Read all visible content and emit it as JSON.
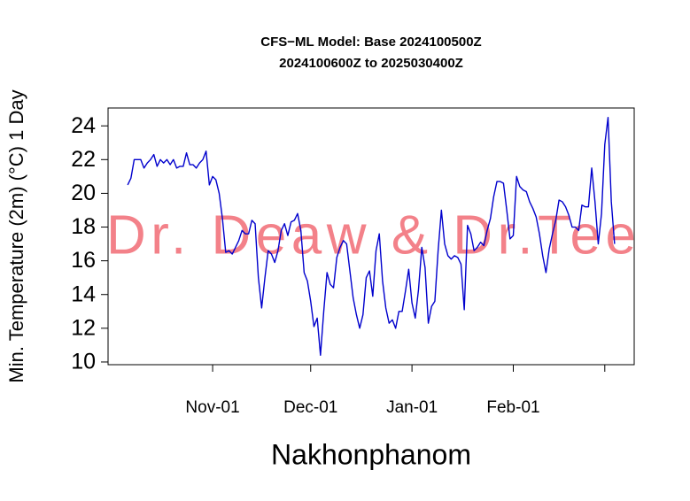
{
  "chart_data": {
    "type": "line",
    "title": [
      "CFS−ML Model: Base 2024100500Z",
      "2024100600Z to 2025030400Z"
    ],
    "xlabel": "Nakhonphanom",
    "ylabel": "Min. Temperature (2m) (°C) 1 Day",
    "watermark": "Dr. Deaw & Dr.Tee",
    "x": [
      "Oct-06",
      "Oct-07",
      "Oct-08",
      "Oct-09",
      "Oct-10",
      "Oct-11",
      "Oct-12",
      "Oct-13",
      "Oct-14",
      "Oct-15",
      "Oct-16",
      "Oct-17",
      "Oct-18",
      "Oct-19",
      "Oct-20",
      "Oct-21",
      "Oct-22",
      "Oct-23",
      "Oct-24",
      "Oct-25",
      "Oct-26",
      "Oct-27",
      "Oct-28",
      "Oct-29",
      "Oct-30",
      "Oct-31",
      "Nov-01",
      "Nov-02",
      "Nov-03",
      "Nov-04",
      "Nov-05",
      "Nov-06",
      "Nov-07",
      "Nov-08",
      "Nov-09",
      "Nov-10",
      "Nov-11",
      "Nov-12",
      "Nov-13",
      "Nov-14",
      "Nov-15",
      "Nov-16",
      "Nov-17",
      "Nov-18",
      "Nov-19",
      "Nov-20",
      "Nov-21",
      "Nov-22",
      "Nov-23",
      "Nov-24",
      "Nov-25",
      "Nov-26",
      "Nov-27",
      "Nov-28",
      "Nov-29",
      "Nov-30",
      "Dec-01",
      "Dec-02",
      "Dec-03",
      "Dec-04",
      "Dec-05",
      "Dec-06",
      "Dec-07",
      "Dec-08",
      "Dec-09",
      "Dec-10",
      "Dec-11",
      "Dec-12",
      "Dec-13",
      "Dec-14",
      "Dec-15",
      "Dec-16",
      "Dec-17",
      "Dec-18",
      "Dec-19",
      "Dec-20",
      "Dec-21",
      "Dec-22",
      "Dec-23",
      "Dec-24",
      "Dec-25",
      "Dec-26",
      "Dec-27",
      "Dec-28",
      "Dec-29",
      "Dec-30",
      "Dec-31",
      "Jan-01",
      "Jan-02",
      "Jan-03",
      "Jan-04",
      "Jan-05",
      "Jan-06",
      "Jan-07",
      "Jan-08",
      "Jan-09",
      "Jan-10",
      "Jan-11",
      "Jan-12",
      "Jan-13",
      "Jan-14",
      "Jan-15",
      "Jan-16",
      "Jan-17",
      "Jan-18",
      "Jan-19",
      "Jan-20",
      "Jan-21",
      "Jan-22",
      "Jan-23",
      "Jan-24",
      "Jan-25",
      "Jan-26",
      "Jan-27",
      "Jan-28",
      "Jan-29",
      "Jan-30",
      "Jan-31",
      "Feb-01",
      "Feb-02",
      "Feb-03",
      "Feb-04",
      "Feb-05",
      "Feb-06",
      "Feb-07",
      "Feb-08",
      "Feb-09",
      "Feb-10",
      "Feb-11",
      "Feb-12",
      "Feb-13",
      "Feb-14",
      "Feb-15",
      "Feb-16",
      "Feb-17",
      "Feb-18",
      "Feb-19",
      "Feb-20",
      "Feb-21",
      "Feb-22",
      "Feb-23",
      "Feb-24",
      "Feb-25",
      "Feb-26",
      "Feb-27",
      "Feb-28",
      "Mar-01",
      "Mar-02",
      "Mar-03",
      "Mar-04"
    ],
    "series": [
      {
        "color": "#0000cd",
        "values": [
          20.5,
          20.9,
          22.0,
          22.0,
          22.0,
          21.5,
          21.8,
          22.0,
          22.3,
          21.6,
          22.0,
          21.8,
          22.0,
          21.7,
          22.0,
          21.5,
          21.6,
          21.6,
          22.4,
          21.7,
          21.7,
          21.5,
          21.8,
          22.0,
          22.5,
          20.5,
          21.0,
          20.8,
          20.0,
          18.5,
          16.5,
          16.6,
          16.4,
          16.8,
          17.2,
          17.8,
          17.6,
          17.6,
          18.4,
          18.2,
          15.0,
          13.2,
          15.0,
          16.6,
          16.4,
          15.9,
          16.6,
          17.8,
          18.2,
          17.5,
          18.3,
          18.4,
          18.8,
          17.8,
          15.3,
          14.8,
          13.6,
          12.1,
          12.6,
          10.4,
          13.0,
          15.3,
          14.6,
          14.4,
          16.2,
          16.8,
          17.2,
          17.0,
          15.4,
          13.8,
          12.8,
          12.0,
          12.8,
          15.0,
          15.4,
          13.9,
          16.6,
          17.6,
          14.8,
          13.2,
          12.3,
          12.5,
          12.0,
          13.0,
          13.0,
          14.2,
          15.5,
          13.5,
          12.6,
          14.3,
          16.8,
          15.6,
          12.3,
          13.3,
          13.6,
          16.6,
          19.0,
          17.0,
          16.3,
          16.1,
          16.3,
          16.2,
          15.8,
          13.1,
          18.1,
          17.6,
          16.6,
          16.8,
          17.1,
          16.9,
          17.8,
          18.5,
          19.8,
          20.7,
          20.7,
          20.6,
          19.0,
          17.3,
          17.5,
          21.0,
          20.4,
          20.2,
          20.1,
          19.5,
          19.1,
          18.6,
          17.6,
          16.3,
          15.3,
          16.7,
          17.6,
          18.4,
          19.6,
          19.5,
          19.2,
          18.7,
          18.0,
          18.0,
          17.8,
          19.3,
          19.2,
          19.2,
          21.5,
          19.5,
          17.0,
          18.8,
          22.9,
          24.5,
          19.5,
          17.0
        ]
      }
    ],
    "xlim": [
      "Sep-30",
      "Mar-10"
    ],
    "xticks": [
      "Nov-01",
      "Dec-01",
      "Jan-01",
      "Feb-01",
      {
        "value": "Mar-01",
        "label": null
      }
    ],
    "ylim": [
      9.84,
      25.06
    ],
    "yticks": [
      10,
      12,
      14,
      16,
      18,
      20,
      22,
      24
    ],
    "grid": false
  }
}
